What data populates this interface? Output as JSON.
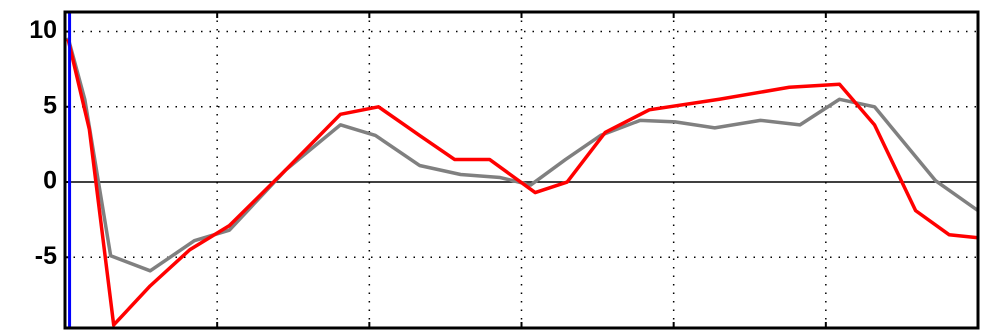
{
  "chart_data": {
    "type": "line",
    "xlim": [
      0,
      6
    ],
    "xticks": [
      1,
      2,
      3,
      4,
      5
    ],
    "ylim": [
      -9.7,
      11.3
    ],
    "yticks": [
      -5,
      0,
      5,
      10
    ],
    "grid": true,
    "zero_line": true,
    "cursor": {
      "x": 0.03,
      "color": "#0000ff"
    },
    "series": [
      {
        "color": "#808080",
        "x": [
          0.02,
          0.13,
          0.3,
          0.56,
          0.85,
          1.08,
          1.45,
          1.81,
          2.04,
          2.33,
          2.6,
          2.86,
          3.06,
          3.29,
          3.52,
          3.78,
          4.01,
          4.27,
          4.57,
          4.83,
          5.09,
          5.32,
          5.72,
          6.0
        ],
        "values": [
          9.6,
          5.5,
          -4.9,
          -5.9,
          -3.9,
          -3.2,
          0.8,
          3.8,
          3.1,
          1.1,
          0.5,
          0.3,
          -0.2,
          1.5,
          3.1,
          4.1,
          4.0,
          3.6,
          4.1,
          3.8,
          5.5,
          5.0,
          0.1,
          -1.9
        ]
      },
      {
        "color": "#ff0000",
        "x": [
          0.02,
          0.16,
          0.32,
          0.56,
          0.82,
          1.08,
          1.45,
          1.81,
          2.06,
          2.33,
          2.56,
          2.79,
          3.09,
          3.3,
          3.55,
          3.84,
          4.3,
          4.76,
          5.09,
          5.32,
          5.59,
          5.81,
          6.0
        ],
        "values": [
          9.5,
          3.5,
          -9.5,
          -6.9,
          -4.5,
          -2.9,
          0.8,
          4.5,
          5.0,
          3.1,
          1.5,
          1.5,
          -0.7,
          0.0,
          3.3,
          4.8,
          5.5,
          6.3,
          6.5,
          3.8,
          -1.9,
          -3.5,
          -3.7
        ]
      }
    ]
  }
}
